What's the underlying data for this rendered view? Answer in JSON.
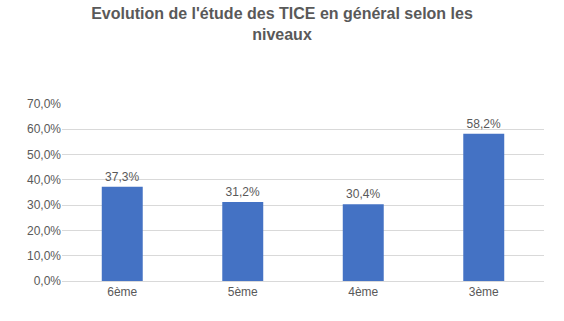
{
  "chart_data": {
    "type": "bar",
    "title": "Evolution de l'étude des TICE en général selon les niveaux",
    "categories": [
      "6ème",
      "5ème",
      "4ème",
      "3ème"
    ],
    "values": [
      37.3,
      31.2,
      30.4,
      58.2
    ],
    "value_labels": [
      "37,3%",
      "31,2%",
      "30,4%",
      "58,2%"
    ],
    "color": "#4472c4",
    "ylim": [
      0,
      70
    ],
    "yticks": [
      {
        "value": 0,
        "label": "0,0%"
      },
      {
        "value": 10,
        "label": "10,0%"
      },
      {
        "value": 20,
        "label": "20,0%"
      },
      {
        "value": 30,
        "label": "30,0%"
      },
      {
        "value": 40,
        "label": "40,0%"
      },
      {
        "value": 50,
        "label": "50,0%"
      },
      {
        "value": 60,
        "label": "60,0%"
      },
      {
        "value": 70,
        "label": "70,0%"
      }
    ],
    "grid": true,
    "data_labels": true
  }
}
